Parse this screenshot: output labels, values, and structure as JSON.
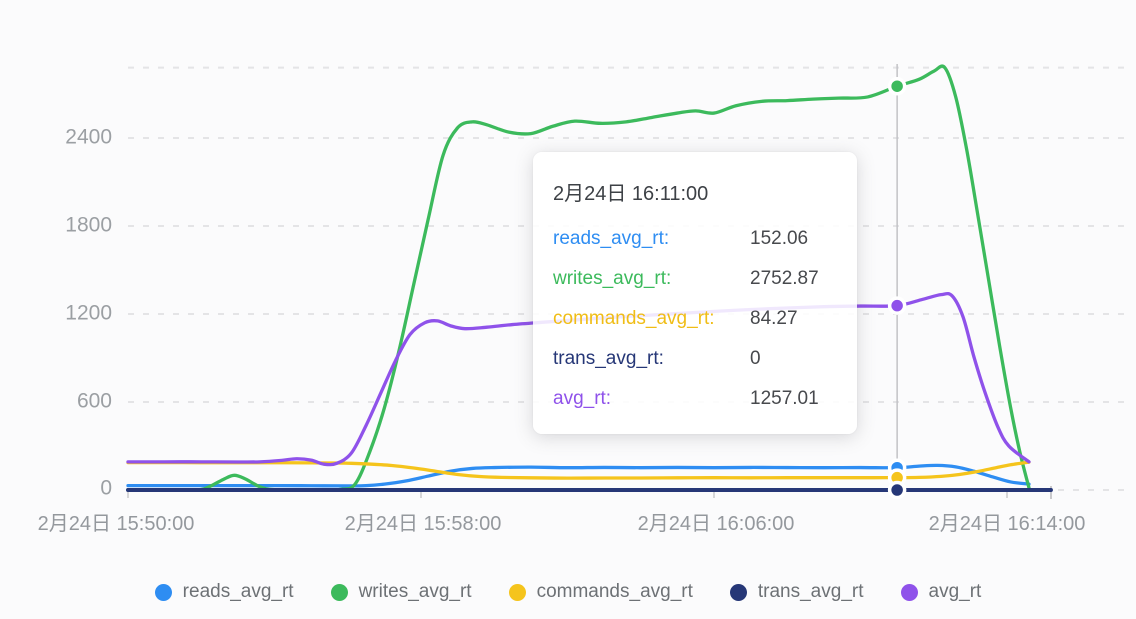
{
  "chart_data": {
    "type": "line",
    "title": "",
    "grid": "dashed-horizontal",
    "legend_position": "bottom",
    "x_axis": {
      "tick_labels": [
        "2月24日 15:50:00",
        "2月24日 15:58:00",
        "2月24日 16:06:00",
        "2月24日 16:14:00"
      ],
      "tick_minutes": [
        0,
        8,
        16,
        24
      ],
      "unit": "minutes after 15:50:00"
    },
    "y_axis": {
      "tick_labels": [
        "0",
        "600",
        "1200",
        "1800",
        "2400"
      ],
      "tick_values": [
        0,
        600,
        1200,
        1800,
        2400
      ],
      "max": 2880
    },
    "series": [
      {
        "name": "reads_avg_rt",
        "color": "#2e8df2",
        "points": [
          [
            0,
            30
          ],
          [
            1,
            30
          ],
          [
            2,
            30
          ],
          [
            3,
            30
          ],
          [
            4,
            30
          ],
          [
            5,
            29
          ],
          [
            6,
            28
          ],
          [
            6.5,
            30
          ],
          [
            7,
            40
          ],
          [
            7.6,
            62
          ],
          [
            8.2,
            95
          ],
          [
            8.8,
            128
          ],
          [
            9.4,
            147
          ],
          [
            10,
            153
          ],
          [
            11,
            156
          ],
          [
            12,
            152
          ],
          [
            13,
            154
          ],
          [
            14,
            152
          ],
          [
            15,
            154
          ],
          [
            16,
            152
          ],
          [
            17,
            154
          ],
          [
            18,
            153
          ],
          [
            19,
            152
          ],
          [
            20,
            153
          ],
          [
            21,
            152.06
          ],
          [
            21.6,
            163
          ],
          [
            22.1,
            168
          ],
          [
            22.6,
            158
          ],
          [
            23.1,
            128
          ],
          [
            23.6,
            90
          ],
          [
            24.1,
            55
          ],
          [
            24.6,
            40
          ]
        ]
      },
      {
        "name": "writes_avg_rt",
        "color": "#3cba5c",
        "points": [
          [
            0,
            2
          ],
          [
            1,
            2
          ],
          [
            1.9,
            2
          ],
          [
            2.2,
            20
          ],
          [
            2.6,
            72
          ],
          [
            2.9,
            100
          ],
          [
            3.2,
            76
          ],
          [
            3.6,
            22
          ],
          [
            4,
            2
          ],
          [
            5,
            2
          ],
          [
            5.8,
            4
          ],
          [
            6.2,
            40
          ],
          [
            6.6,
            260
          ],
          [
            7,
            560
          ],
          [
            7.4,
            950
          ],
          [
            7.8,
            1400
          ],
          [
            8.2,
            1850
          ],
          [
            8.6,
            2280
          ],
          [
            9,
            2470
          ],
          [
            9.4,
            2510
          ],
          [
            9.8,
            2490
          ],
          [
            10.4,
            2440
          ],
          [
            11,
            2430
          ],
          [
            11.6,
            2480
          ],
          [
            12.2,
            2515
          ],
          [
            12.9,
            2500
          ],
          [
            13.6,
            2510
          ],
          [
            14.3,
            2540
          ],
          [
            15,
            2570
          ],
          [
            15.5,
            2585
          ],
          [
            16,
            2570
          ],
          [
            16.6,
            2620
          ],
          [
            17.3,
            2650
          ],
          [
            18,
            2655
          ],
          [
            18.7,
            2665
          ],
          [
            19.4,
            2672
          ],
          [
            20.2,
            2680
          ],
          [
            21,
            2752.87
          ],
          [
            21.6,
            2800
          ],
          [
            22,
            2855
          ],
          [
            22.3,
            2880
          ],
          [
            22.6,
            2680
          ],
          [
            22.9,
            2320
          ],
          [
            23.2,
            1880
          ],
          [
            23.5,
            1430
          ],
          [
            23.8,
            980
          ],
          [
            24.1,
            560
          ],
          [
            24.35,
            260
          ],
          [
            24.6,
            15
          ]
        ]
      },
      {
        "name": "commands_avg_rt",
        "color": "#f5c41c",
        "points": [
          [
            0,
            187
          ],
          [
            1,
            187
          ],
          [
            2,
            186
          ],
          [
            3,
            186
          ],
          [
            4,
            186
          ],
          [
            5,
            185
          ],
          [
            5.6,
            184
          ],
          [
            6.1,
            182
          ],
          [
            6.6,
            177
          ],
          [
            7.2,
            167
          ],
          [
            7.8,
            150
          ],
          [
            8.4,
            128
          ],
          [
            9,
            106
          ],
          [
            9.6,
            92
          ],
          [
            10.2,
            86
          ],
          [
            11,
            83
          ],
          [
            12,
            81
          ],
          [
            13,
            82
          ],
          [
            14,
            82
          ],
          [
            15,
            83
          ],
          [
            16,
            84
          ],
          [
            17,
            83
          ],
          [
            18,
            84
          ],
          [
            19,
            84
          ],
          [
            20,
            84
          ],
          [
            21,
            84.27
          ],
          [
            21.6,
            86
          ],
          [
            22.2,
            93
          ],
          [
            22.7,
            106
          ],
          [
            23.2,
            126
          ],
          [
            23.7,
            152
          ],
          [
            24.1,
            172
          ],
          [
            24.6,
            190
          ]
        ]
      },
      {
        "name": "trans_avg_rt",
        "color": "#263777",
        "points": [
          [
            0,
            0
          ],
          [
            12,
            0
          ],
          [
            25.2,
            0
          ]
        ]
      },
      {
        "name": "avg_rt",
        "color": "#8f52ea",
        "points": [
          [
            0,
            192
          ],
          [
            1,
            192
          ],
          [
            2,
            192
          ],
          [
            3,
            191
          ],
          [
            3.6,
            192
          ],
          [
            4.2,
            202
          ],
          [
            4.6,
            213
          ],
          [
            5,
            204
          ],
          [
            5.35,
            176
          ],
          [
            5.7,
            182
          ],
          [
            6.1,
            252
          ],
          [
            6.5,
            440
          ],
          [
            6.9,
            660
          ],
          [
            7.3,
            880
          ],
          [
            7.7,
            1060
          ],
          [
            8.1,
            1140
          ],
          [
            8.45,
            1153
          ],
          [
            8.8,
            1120
          ],
          [
            9.2,
            1100
          ],
          [
            9.8,
            1110
          ],
          [
            10.5,
            1128
          ],
          [
            11.4,
            1145
          ],
          [
            12.4,
            1163
          ],
          [
            13.4,
            1180
          ],
          [
            14.5,
            1196
          ],
          [
            15.6,
            1212
          ],
          [
            16.8,
            1228
          ],
          [
            17.9,
            1240
          ],
          [
            19,
            1250
          ],
          [
            20,
            1254
          ],
          [
            21,
            1257.01
          ],
          [
            21.7,
            1300
          ],
          [
            22.2,
            1332
          ],
          [
            22.5,
            1324
          ],
          [
            22.8,
            1180
          ],
          [
            23.1,
            905
          ],
          [
            23.4,
            665
          ],
          [
            23.75,
            430
          ],
          [
            24.05,
            300
          ],
          [
            24.6,
            192
          ]
        ]
      }
    ],
    "tooltip": {
      "title": "2月24日 16:11:00",
      "time_minutes": 21,
      "rows": [
        {
          "label": "reads_avg_rt:",
          "value": "152.06",
          "color": "#2e8df2"
        },
        {
          "label": "writes_avg_rt:",
          "value": "2752.87",
          "color": "#3cba5c"
        },
        {
          "label": "commands_avg_rt:",
          "value": "84.27",
          "color": "#f0bd16"
        },
        {
          "label": "trans_avg_rt:",
          "value": "0",
          "color": "#263777"
        },
        {
          "label": "avg_rt:",
          "value": "1257.01",
          "color": "#8f52ea"
        }
      ]
    },
    "colors": {
      "gridline": "#e4e4e6",
      "axis_tick": "#c9c9cc",
      "crosshair": "#c2c2c6",
      "axis_label": "#9b9fa3"
    }
  }
}
